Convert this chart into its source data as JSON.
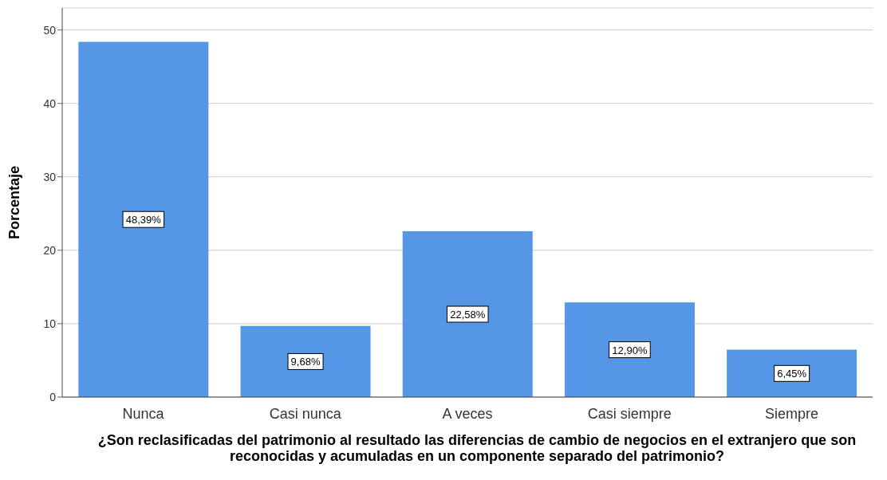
{
  "chart_data": {
    "type": "bar",
    "xlabel": "¿Son reclasificadas del patrimonio al resultado las diferencias de cambio de negocios en el extranjero que son reconocidas y acumuladas en un componente separado del patrimonio?",
    "ylabel": "Porcentaje",
    "categories": [
      "Nunca",
      "Casi nunca",
      "A veces",
      "Casi siempre",
      "Siempre"
    ],
    "values": [
      48.39,
      9.68,
      22.58,
      12.9,
      6.45
    ],
    "value_labels": [
      "48,39%",
      "9,68%",
      "22,58%",
      "12,90%",
      "6,45%"
    ],
    "color": "#5596e6",
    "ylim": [
      0,
      53
    ],
    "yticks": [
      0,
      10,
      20,
      30,
      40,
      50
    ],
    "grid": "y"
  }
}
